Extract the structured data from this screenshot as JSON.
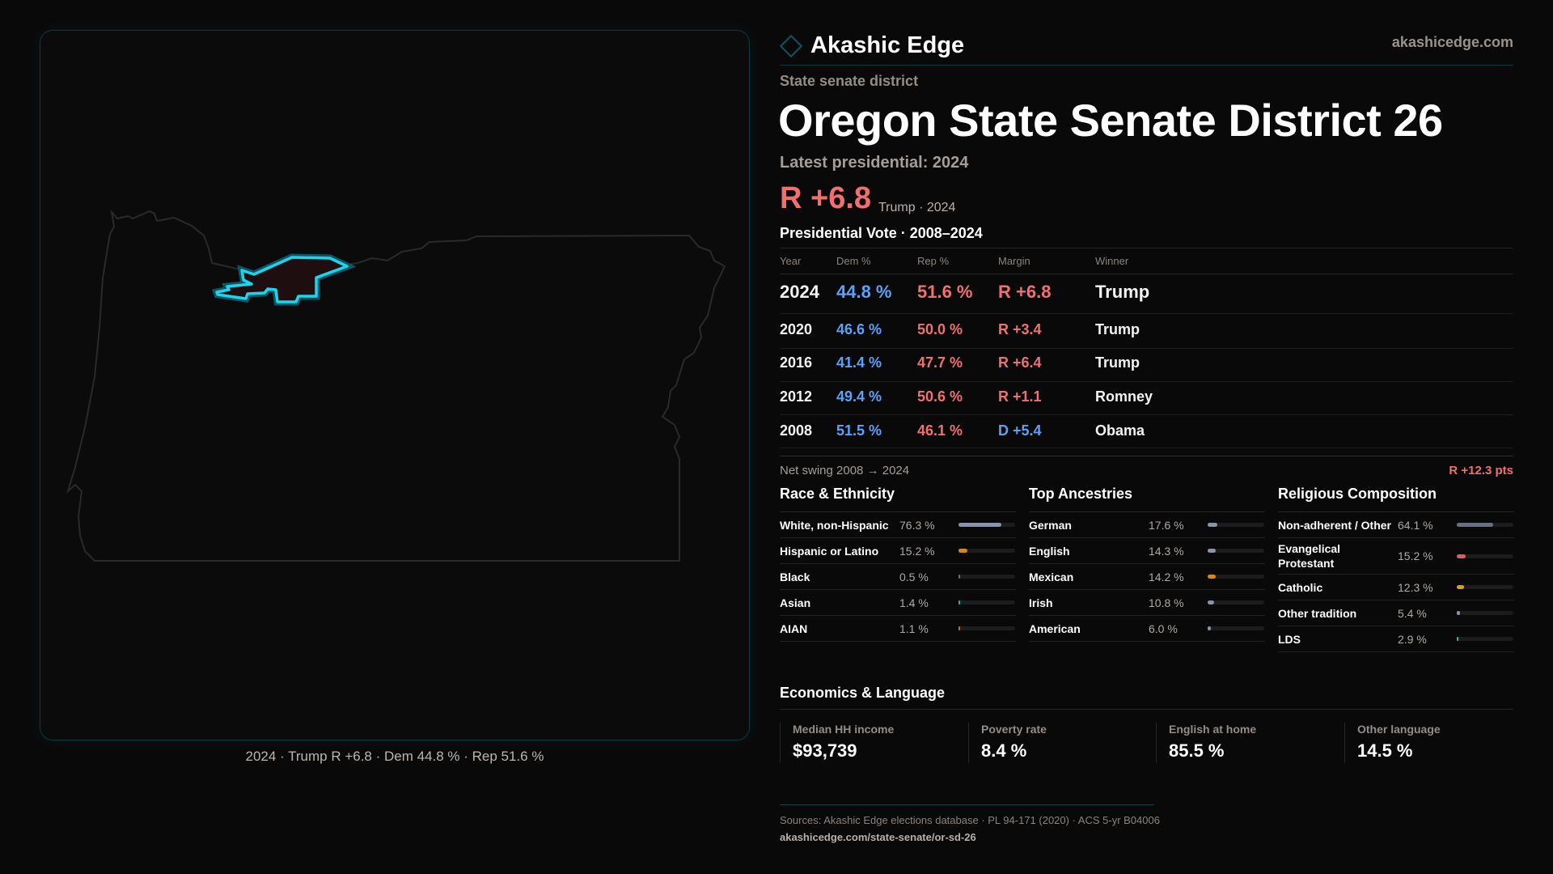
{
  "brand": {
    "name": "Akashic Edge",
    "site": "akashicedge.com",
    "logo_icon": "diamond-icon"
  },
  "map": {
    "caption": "2024 · Trump R +6.8 · Dem 44.8 % · Rep 51.6 %",
    "highlight_color": "#19d6f0"
  },
  "header": {
    "kind": "State senate district",
    "title": "Oregon State Senate District 26",
    "latest": "Latest presidential: 2024",
    "margin": "R +6.8",
    "margin_sub": "Trump · 2024"
  },
  "presidential": {
    "title": "Presidential Vote · 2008–2024",
    "columns": [
      "Year",
      "Dem %",
      "Rep %",
      "Margin",
      "Winner"
    ],
    "rows": [
      {
        "year": "2024",
        "dem": "44.8 %",
        "rep": "51.6 %",
        "margin": "R +6.8",
        "margin_party": "R",
        "winner": "Trump"
      },
      {
        "year": "2020",
        "dem": "46.6 %",
        "rep": "50.0 %",
        "margin": "R +3.4",
        "margin_party": "R",
        "winner": "Trump"
      },
      {
        "year": "2016",
        "dem": "41.4 %",
        "rep": "47.7 %",
        "margin": "R +6.4",
        "margin_party": "R",
        "winner": "Trump"
      },
      {
        "year": "2012",
        "dem": "49.4 %",
        "rep": "50.6 %",
        "margin": "R +1.1",
        "margin_party": "R",
        "winner": "Romney"
      },
      {
        "year": "2008",
        "dem": "51.5 %",
        "rep": "46.1 %",
        "margin": "D +5.4",
        "margin_party": "D",
        "winner": "Obama"
      }
    ],
    "swing_label": "Net swing 2008 → 2024",
    "swing_value": "R +12.3 pts"
  },
  "sections": [
    {
      "title": "Race & Ethnicity",
      "items": [
        {
          "label": "White, non-Hispanic",
          "value": "76.3 %",
          "pct": 76.3,
          "color": "#8a94a6"
        },
        {
          "label": "Hispanic or Latino",
          "value": "15.2 %",
          "pct": 15.2,
          "color": "#d4880f"
        },
        {
          "label": "Black",
          "value": "0.5 %",
          "pct": 0.5,
          "color": "#6b6f78"
        },
        {
          "label": "Asian",
          "value": "1.4 %",
          "pct": 1.4,
          "color": "#2bb39a"
        },
        {
          "label": "AIAN",
          "value": "1.1 %",
          "pct": 1.1,
          "color": "#c8701a"
        }
      ]
    },
    {
      "title": "Top Ancestries",
      "items": [
        {
          "label": "German",
          "value": "17.6 %",
          "pct": 17.6,
          "color": "#8a94a6"
        },
        {
          "label": "English",
          "value": "14.3 %",
          "pct": 14.3,
          "color": "#8a94a6"
        },
        {
          "label": "Mexican",
          "value": "14.2 %",
          "pct": 14.2,
          "color": "#d4880f"
        },
        {
          "label": "Irish",
          "value": "10.8 %",
          "pct": 10.8,
          "color": "#8a94a6"
        },
        {
          "label": "American",
          "value": "6.0 %",
          "pct": 6.0,
          "color": "#8a94a6"
        }
      ]
    },
    {
      "title": "Religious Composition",
      "items": [
        {
          "label": "Non-adherent / Other",
          "value": "64.1 %",
          "pct": 64.1,
          "color": "#6b7080"
        },
        {
          "label": "Evangelical Protestant",
          "value": "15.2 %",
          "pct": 15.2,
          "color": "#e05b5b"
        },
        {
          "label": "Catholic",
          "value": "12.3 %",
          "pct": 12.3,
          "color": "#d8a21c"
        },
        {
          "label": "Other tradition",
          "value": "5.4 %",
          "pct": 5.4,
          "color": "#8a94a6"
        },
        {
          "label": "LDS",
          "value": "2.9 %",
          "pct": 2.9,
          "color": "#20c0b0"
        }
      ]
    }
  ],
  "economics": {
    "title": "Economics & Language",
    "stats": [
      {
        "label": "Median HH income",
        "value": "$93,739"
      },
      {
        "label": "Poverty rate",
        "value": "8.4 %"
      },
      {
        "label": "English at home",
        "value": "85.5 %"
      },
      {
        "label": "Other language",
        "value": "14.5 %"
      }
    ]
  },
  "footer": {
    "sources": "Sources: Akashic Edge elections database · PL 94-171 (2020) · ACS 5-yr B04006",
    "url": "akashicedge.com/state-senate/or-sd-26"
  }
}
